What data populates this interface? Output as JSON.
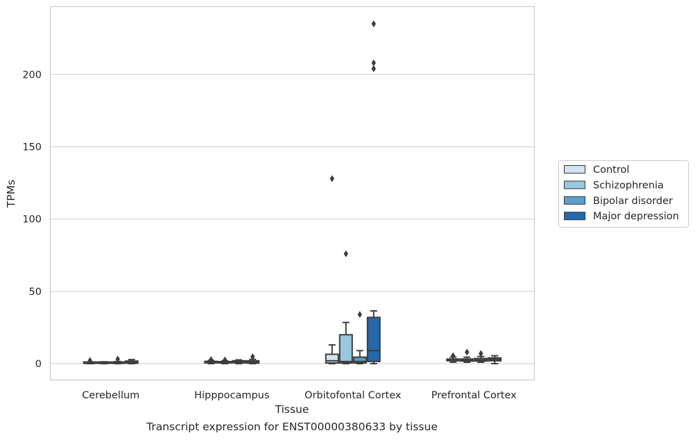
{
  "caption": "Transcript expression for ENST00000380633 by tissue",
  "chart_data": {
    "type": "box",
    "title": "",
    "xlabel": "Tissue",
    "ylabel": "TPMs",
    "ylim": [
      -12,
      248
    ],
    "yticks": [
      0,
      50,
      100,
      150,
      200
    ],
    "grid": "horizontal",
    "legend_position": "right",
    "categories": [
      "Cerebellum",
      "Hipppocampus",
      "Orbitofontal Cortex",
      "Prefrontal Cortex"
    ],
    "colors": [
      "#d2e3f2",
      "#9ac7e0",
      "#5a9fcd",
      "#2568ad"
    ],
    "series": [
      {
        "name": "Control",
        "boxes": [
          {
            "whisker_low": 0,
            "q1": 0.2,
            "median": 0.4,
            "q3": 0.7,
            "whisker_high": 1.2,
            "outliers": [
              2.2
            ]
          },
          {
            "whisker_low": 0,
            "q1": 0.6,
            "median": 1.0,
            "q3": 1.6,
            "whisker_high": 2.2,
            "outliers": [
              2.8
            ]
          },
          {
            "whisker_low": 0,
            "q1": 0.5,
            "median": 2.0,
            "q3": 6.5,
            "whisker_high": 13,
            "outliers": [
              128
            ]
          },
          {
            "whisker_low": 1,
            "q1": 2.0,
            "median": 2.6,
            "q3": 3.2,
            "whisker_high": 4.5,
            "outliers": [
              5.5
            ]
          }
        ]
      },
      {
        "name": "Schizophrenia",
        "boxes": [
          {
            "whisker_low": 0,
            "q1": 0.2,
            "median": 0.4,
            "q3": 0.8,
            "whisker_high": 1.3,
            "outliers": []
          },
          {
            "whisker_low": 0,
            "q1": 0.5,
            "median": 0.9,
            "q3": 1.4,
            "whisker_high": 2.0,
            "outliers": [
              2.6
            ]
          },
          {
            "whisker_low": 0,
            "q1": 0.5,
            "median": 1.5,
            "q3": 20,
            "whisker_high": 28.5,
            "outliers": [
              76
            ]
          },
          {
            "whisker_low": 1,
            "q1": 1.8,
            "median": 2.4,
            "q3": 3.2,
            "whisker_high": 4.5,
            "outliers": [
              8
            ]
          }
        ]
      },
      {
        "name": "Bipolar disorder",
        "boxes": [
          {
            "whisker_low": 0,
            "q1": 0.2,
            "median": 0.5,
            "q3": 0.9,
            "whisker_high": 1.5,
            "outliers": [
              3.2
            ]
          },
          {
            "whisker_low": 0,
            "q1": 0.6,
            "median": 1.2,
            "q3": 2.0,
            "whisker_high": 2.6,
            "outliers": []
          },
          {
            "whisker_low": 0,
            "q1": 0.5,
            "median": 1.5,
            "q3": 4.5,
            "whisker_high": 9,
            "outliers": [
              34
            ]
          },
          {
            "whisker_low": 1,
            "q1": 1.8,
            "median": 2.5,
            "q3": 3.6,
            "whisker_high": 5,
            "outliers": [
              7
            ]
          }
        ]
      },
      {
        "name": "Major depression",
        "boxes": [
          {
            "whisker_low": 0,
            "q1": 0.3,
            "median": 0.8,
            "q3": 1.8,
            "whisker_high": 2.8,
            "outliers": []
          },
          {
            "whisker_low": 0,
            "q1": 0.4,
            "median": 1.0,
            "q3": 2.0,
            "whisker_high": 3.0,
            "outliers": [
              4.8
            ]
          },
          {
            "whisker_low": 0,
            "q1": 1.5,
            "median": 9,
            "q3": 32,
            "whisker_high": 36.5,
            "outliers": [
              204,
              208,
              235
            ]
          },
          {
            "whisker_low": 0,
            "q1": 2.0,
            "median": 3.0,
            "q3": 4.0,
            "whisker_high": 5.5,
            "outliers": []
          }
        ]
      }
    ]
  }
}
